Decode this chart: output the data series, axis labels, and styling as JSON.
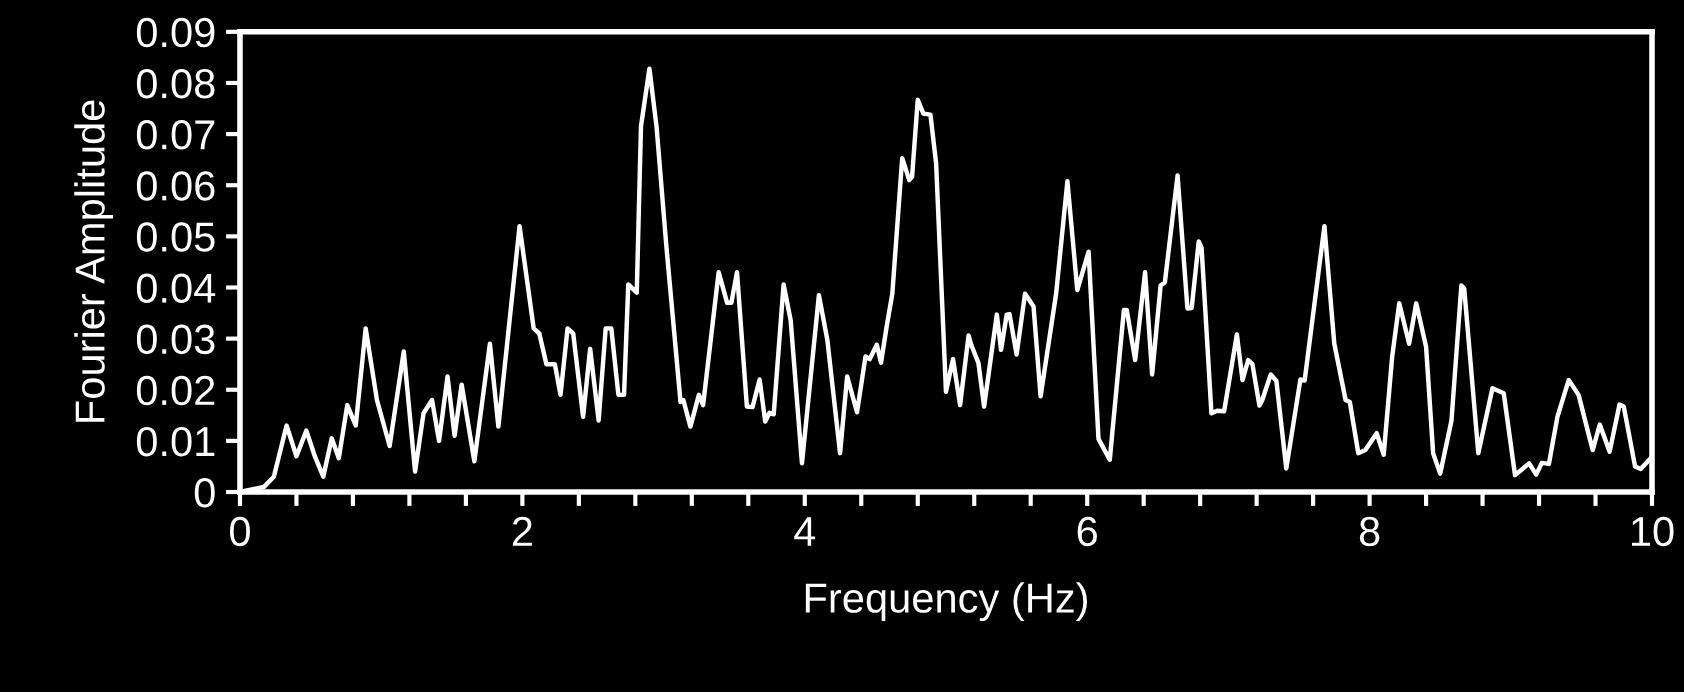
{
  "chart_data": {
    "type": "line",
    "xlabel": "Frequency (Hz)",
    "ylabel": "Fourier Amplitude",
    "x": [
      0,
      0.17,
      0.24,
      0.33,
      0.4,
      0.47,
      0.53,
      0.59,
      0.65,
      0.7,
      0.76,
      0.82,
      0.89,
      0.97,
      1.06,
      1.16,
      1.24,
      1.3,
      1.36,
      1.41,
      1.47,
      1.52,
      1.57,
      1.66,
      1.77,
      1.83,
      1.98,
      2.08,
      2.12,
      2.17,
      2.23,
      2.27,
      2.32,
      2.36,
      2.43,
      2.48,
      2.54,
      2.59,
      2.63,
      2.68,
      2.72,
      2.75,
      2.81,
      2.84,
      2.9,
      2.95,
      3.02,
      3.12,
      3.14,
      3.19,
      3.25,
      3.28,
      3.39,
      3.45,
      3.48,
      3.52,
      3.59,
      3.63,
      3.68,
      3.72,
      3.75,
      3.78,
      3.85,
      3.9,
      3.98,
      4.1,
      4.16,
      4.25,
      4.3,
      4.37,
      4.43,
      4.46,
      4.51,
      4.54,
      4.58,
      4.62,
      4.69,
      4.74,
      4.76,
      4.8,
      4.84,
      4.89,
      4.93,
      5.0,
      5.05,
      5.1,
      5.16,
      5.18,
      5.23,
      5.27,
      5.36,
      5.39,
      5.43,
      5.45,
      5.5,
      5.56,
      5.62,
      5.67,
      5.78,
      5.86,
      5.93,
      6.01,
      6.08,
      6.16,
      6.26,
      6.28,
      6.34,
      6.41,
      6.46,
      6.52,
      6.55,
      6.64,
      6.71,
      6.74,
      6.79,
      6.81,
      6.88,
      6.92,
      6.97,
      7.06,
      7.1,
      7.14,
      7.17,
      7.22,
      7.24,
      7.3,
      7.34,
      7.41,
      7.51,
      7.54,
      7.68,
      7.75,
      7.83,
      7.86,
      7.92,
      7.97,
      8.05,
      8.1,
      8.16,
      8.21,
      8.28,
      8.33,
      8.4,
      8.45,
      8.5,
      8.58,
      8.65,
      8.67,
      8.77,
      8.87,
      8.95,
      9.03,
      9.13,
      9.18,
      9.22,
      9.27,
      9.33,
      9.41,
      9.48,
      9.58,
      9.63,
      9.7,
      9.77,
      9.8,
      9.88,
      9.92,
      10.0
    ],
    "series": [
      {
        "color": "#ffffff",
        "values": [
          0,
          0.001,
          0.003,
          0.013,
          0.007,
          0.012,
          0.007,
          0.003,
          0.0105,
          0.0066,
          0.017,
          0.013,
          0.032,
          0.018,
          0.009,
          0.0275,
          0.004,
          0.0154,
          0.018,
          0.01,
          0.0226,
          0.011,
          0.021,
          0.006,
          0.029,
          0.0128,
          0.052,
          0.032,
          0.031,
          0.025,
          0.025,
          0.019,
          0.032,
          0.031,
          0.0147,
          0.028,
          0.014,
          0.032,
          0.032,
          0.019,
          0.019,
          0.0406,
          0.039,
          0.0715,
          0.0828,
          0.0715,
          0.048,
          0.0176,
          0.018,
          0.0128,
          0.019,
          0.017,
          0.043,
          0.037,
          0.037,
          0.043,
          0.0167,
          0.0166,
          0.022,
          0.0138,
          0.0155,
          0.0152,
          0.0406,
          0.0336,
          0.0056,
          0.0385,
          0.0297,
          0.0076,
          0.0226,
          0.0156,
          0.0265,
          0.026,
          0.0288,
          0.0253,
          0.0324,
          0.0388,
          0.0653,
          0.061,
          0.0617,
          0.0767,
          0.074,
          0.0738,
          0.0643,
          0.0196,
          0.026,
          0.017,
          0.0306,
          0.0287,
          0.0252,
          0.0167,
          0.0347,
          0.0278,
          0.0347,
          0.0348,
          0.0269,
          0.0388,
          0.0363,
          0.0187,
          0.0388,
          0.0608,
          0.0395,
          0.047,
          0.0104,
          0.0063,
          0.0356,
          0.0356,
          0.0258,
          0.043,
          0.023,
          0.0404,
          0.041,
          0.0619,
          0.0359,
          0.036,
          0.049,
          0.0478,
          0.0154,
          0.0159,
          0.0158,
          0.0308,
          0.0219,
          0.0258,
          0.025,
          0.0169,
          0.018,
          0.023,
          0.0217,
          0.0046,
          0.022,
          0.0218,
          0.052,
          0.029,
          0.018,
          0.0176,
          0.0076,
          0.0082,
          0.0115,
          0.0073,
          0.0265,
          0.0369,
          0.029,
          0.0369,
          0.0284,
          0.0076,
          0.0036,
          0.014,
          0.0404,
          0.0398,
          0.0076,
          0.0203,
          0.0193,
          0.0033,
          0.0056,
          0.0034,
          0.0057,
          0.0055,
          0.0147,
          0.0219,
          0.019,
          0.0082,
          0.0132,
          0.0079,
          0.0171,
          0.0167,
          0.005,
          0.0045,
          0.0069
        ]
      }
    ],
    "xlim": [
      0,
      10
    ],
    "xticks": [
      0,
      {
        "value": 0.4,
        "label": null
      },
      {
        "value": 0.8,
        "label": null
      },
      {
        "value": 1.2,
        "label": null
      },
      {
        "value": 1.6,
        "label": null
      },
      2,
      {
        "value": 2.4,
        "label": null
      },
      {
        "value": 2.8,
        "label": null
      },
      {
        "value": 3.2,
        "label": null
      },
      {
        "value": 3.6,
        "label": null
      },
      4,
      {
        "value": 4.4,
        "label": null
      },
      {
        "value": 4.8,
        "label": null
      },
      {
        "value": 5.2,
        "label": null
      },
      {
        "value": 5.6,
        "label": null
      },
      6,
      {
        "value": 6.4,
        "label": null
      },
      {
        "value": 6.8,
        "label": null
      },
      {
        "value": 7.2,
        "label": null
      },
      {
        "value": 7.6,
        "label": null
      },
      8,
      {
        "value": 8.4,
        "label": null
      },
      {
        "value": 8.8,
        "label": null
      },
      {
        "value": 9.2,
        "label": null
      },
      {
        "value": 9.6,
        "label": null
      },
      10
    ],
    "ylim": [
      0,
      0.09
    ],
    "yticks": [
      0,
      0.01,
      0.02,
      0.03,
      0.04,
      0.05,
      0.06,
      0.07,
      0.08,
      0.09
    ],
    "grid": false,
    "marker": "none",
    "line_style": "solid"
  }
}
